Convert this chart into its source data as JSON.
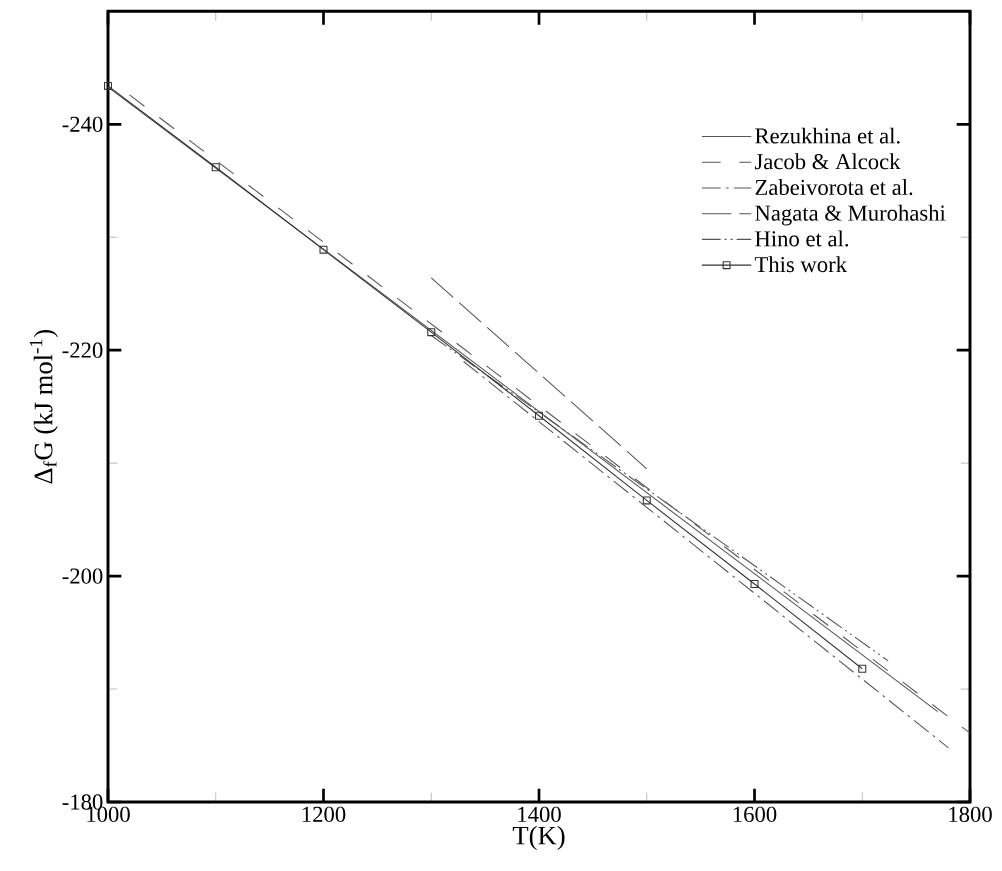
{
  "chart_data": {
    "type": "line",
    "xlabel": "T(K)",
    "ylabel": "Δ$_{f}$G (kJ mol$^{-1}$)",
    "xlim": [
      1000,
      1800
    ],
    "ylim": [
      -180,
      -250
    ],
    "xticks": [
      1000,
      1200,
      1400,
      1600,
      1800
    ],
    "yticks": [
      -240,
      -220,
      -200,
      -180
    ],
    "legend": "top right",
    "grid": false,
    "series": [
      {
        "name": "Rezukhina et al.",
        "color": "#555555",
        "line_style": "solid",
        "marker": "none",
        "x": [
          1000,
          1770
        ],
        "values": [
          -243.3,
          -188.0
        ]
      },
      {
        "name": "Jacob & Alcock",
        "color": "#555555",
        "line_style": "dashed",
        "marker": "none",
        "x": [
          1020,
          1800
        ],
        "values": [
          -242.6,
          -186.1
        ]
      },
      {
        "name": "Zabeivorota et al.",
        "color": "#555555",
        "line_style": "dashdot",
        "marker": "none",
        "x": [
          1330,
          1780
        ],
        "values": [
          -219.0,
          -184.8
        ]
      },
      {
        "name": "Nagata & Murohashi",
        "color": "#555555",
        "line_style": "longdash",
        "marker": "none",
        "x": [
          1300,
          1500
        ],
        "values": [
          -226.4,
          -209.5
        ]
      },
      {
        "name": "Hino et al.",
        "color": "#555555",
        "line_style": "dashdotdot",
        "marker": "none",
        "x": [
          1300,
          1724
        ],
        "values": [
          -221.3,
          -192.5
        ]
      },
      {
        "name": "This work",
        "color": "#333333",
        "line_style": "solid",
        "marker": "square",
        "x": [
          1000,
          1100,
          1200,
          1300,
          1400,
          1500,
          1600,
          1700
        ],
        "values": [
          -243.4,
          -236.2,
          -228.9,
          -221.6,
          -214.2,
          -206.7,
          -199.3,
          -191.8
        ]
      }
    ]
  }
}
